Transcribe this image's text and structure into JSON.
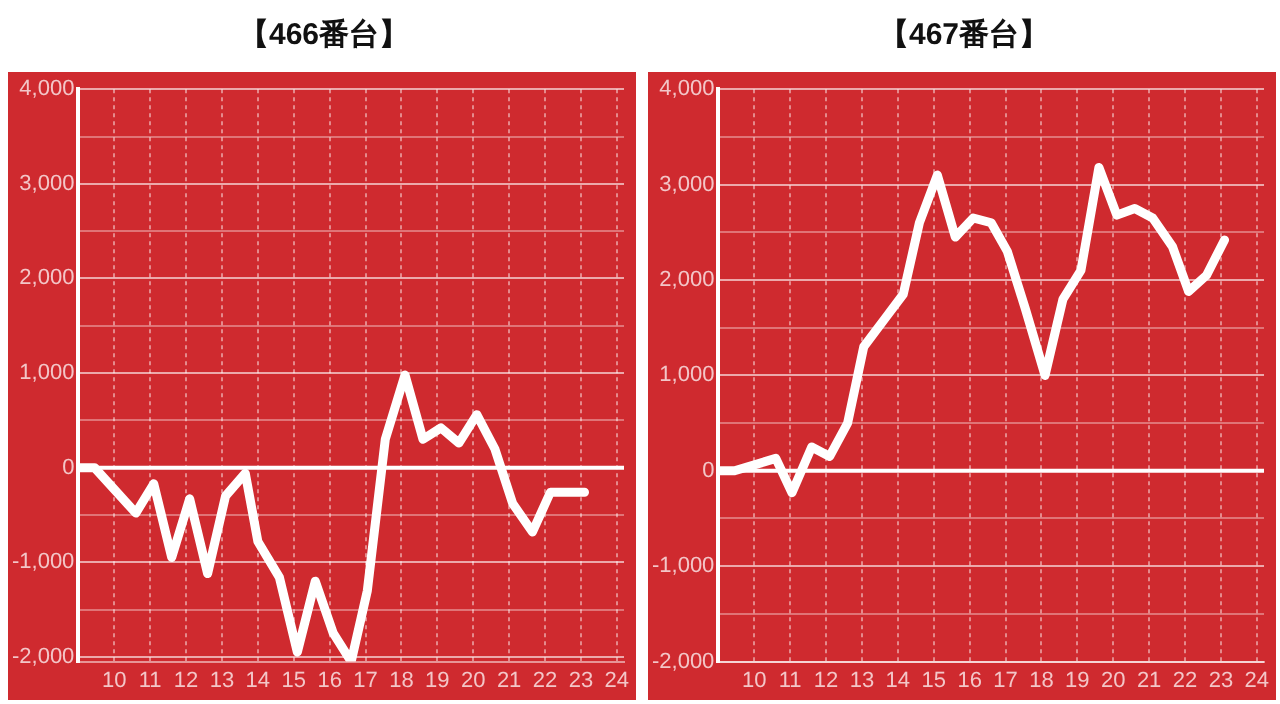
{
  "chart_data": [
    {
      "type": "line",
      "title": "【466番台】",
      "color": "#ffffff",
      "marker": "none",
      "line_style": "solid",
      "grid": true,
      "legend": false,
      "x": [
        9,
        9.45,
        10.6,
        11.1,
        11.6,
        12.1,
        12.6,
        13.1,
        13.65,
        14,
        14.6,
        15.1,
        15.6,
        16.1,
        16.6,
        17.05,
        17.55,
        18.1,
        18.6,
        19.1,
        19.6,
        20.1,
        20.6,
        21.1,
        21.65,
        22.15,
        23.1
      ],
      "values": [
        0,
        0,
        -480,
        -170,
        -950,
        -330,
        -1120,
        -300,
        -60,
        -780,
        -1160,
        -1950,
        -1200,
        -1750,
        -2050,
        -1300,
        300,
        980,
        300,
        420,
        260,
        560,
        200,
        -380,
        -680,
        -260,
        -260
      ],
      "xlim": [
        9,
        24.2
      ],
      "xticks": [
        10,
        11,
        12,
        13,
        14,
        15,
        16,
        17,
        18,
        19,
        20,
        21,
        22,
        23,
        24
      ],
      "ylim": [
        -2050,
        4000
      ],
      "yticks": [
        {
          "value": -2000,
          "label": "-2,000"
        },
        {
          "value": -1500,
          "label": null
        },
        {
          "value": -1000,
          "label": "-1,000"
        },
        {
          "value": -500,
          "label": null
        },
        0,
        {
          "value": 500,
          "label": null
        },
        {
          "value": 1000,
          "label": "1,000"
        },
        {
          "value": 1500,
          "label": null
        },
        {
          "value": 2000,
          "label": "2,000"
        },
        {
          "value": 2500,
          "label": null
        },
        {
          "value": 3000,
          "label": "3,000"
        },
        {
          "value": 3500,
          "label": null
        },
        {
          "value": 4000,
          "label": "4,000"
        }
      ],
      "ref_lines": [
        {
          "axis": "y",
          "value": 0,
          "color": "#ffffff"
        }
      ]
    },
    {
      "type": "line",
      "title": "【467番台】",
      "color": "#ffffff",
      "marker": "none",
      "line_style": "solid",
      "grid": true,
      "legend": false,
      "x": [
        9,
        9.45,
        10.6,
        11.05,
        11.6,
        12.1,
        12.6,
        13.05,
        13.65,
        14.15,
        14.6,
        15.1,
        15.6,
        16.1,
        16.6,
        17.05,
        17.55,
        18.1,
        18.6,
        19.1,
        19.6,
        20.1,
        20.6,
        21.1,
        21.65,
        22.1,
        22.6,
        23.1
      ],
      "values": [
        0,
        0,
        130,
        -230,
        250,
        150,
        500,
        1300,
        1600,
        1850,
        2600,
        3100,
        2450,
        2650,
        2600,
        2300,
        1700,
        1000,
        1800,
        2100,
        3180,
        2680,
        2750,
        2650,
        2350,
        1880,
        2050,
        2420
      ],
      "xlim": [
        9,
        24.2
      ],
      "xticks": [
        10,
        11,
        12,
        13,
        14,
        15,
        16,
        17,
        18,
        19,
        20,
        21,
        22,
        23,
        24
      ],
      "ylim": [
        -2000,
        4000
      ],
      "yticks": [
        {
          "value": -2000,
          "label": "-2,000"
        },
        {
          "value": -1500,
          "label": null
        },
        {
          "value": -1000,
          "label": "-1,000"
        },
        {
          "value": -500,
          "label": null
        },
        0,
        {
          "value": 500,
          "label": null
        },
        {
          "value": 1000,
          "label": "1,000"
        },
        {
          "value": 1500,
          "label": null
        },
        {
          "value": 2000,
          "label": "2,000"
        },
        {
          "value": 2500,
          "label": null
        },
        {
          "value": 3000,
          "label": "3,000"
        },
        {
          "value": 3500,
          "label": null
        },
        {
          "value": 4000,
          "label": "4,000"
        }
      ],
      "ref_lines": [
        {
          "axis": "y",
          "value": 0,
          "color": "#ffffff"
        }
      ]
    }
  ]
}
